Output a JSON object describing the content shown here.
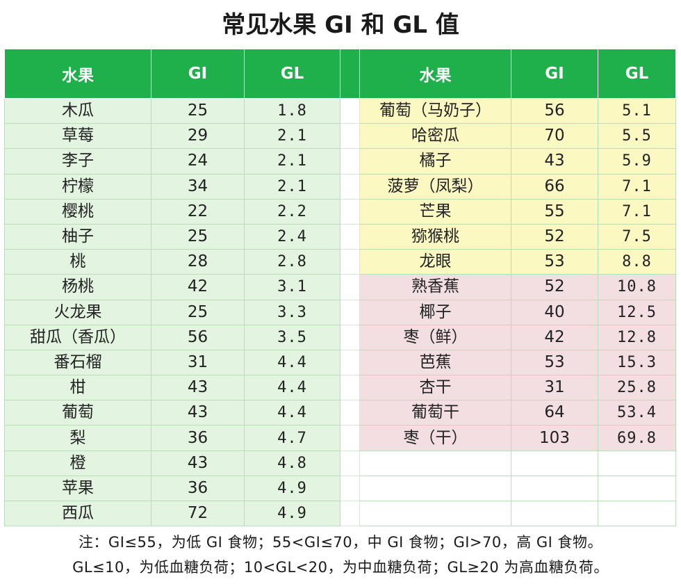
{
  "title": "常见水果 GI 和 GL 值",
  "headers": {
    "left": [
      "水果",
      "GI",
      "GL"
    ],
    "right": [
      "水果",
      "GI",
      "GL"
    ]
  },
  "left_rows": [
    {
      "fruit": "木瓜",
      "gi": "25",
      "gl": "1.8"
    },
    {
      "fruit": "草莓",
      "gi": "29",
      "gl": "2.1"
    },
    {
      "fruit": "李子",
      "gi": "24",
      "gl": "2.1"
    },
    {
      "fruit": "柠檬",
      "gi": "34",
      "gl": "2.1"
    },
    {
      "fruit": "樱桃",
      "gi": "22",
      "gl": "2.2"
    },
    {
      "fruit": "柚子",
      "gi": "25",
      "gl": "2.4"
    },
    {
      "fruit": "桃",
      "gi": "28",
      "gl": "2.8"
    },
    {
      "fruit": "杨桃",
      "gi": "42",
      "gl": "3.1"
    },
    {
      "fruit": "火龙果",
      "gi": "25",
      "gl": "3.3"
    },
    {
      "fruit": "甜瓜（香瓜）",
      "gi": "56",
      "gl": "3.5"
    },
    {
      "fruit": "番石榴",
      "gi": "31",
      "gl": "4.4"
    },
    {
      "fruit": "柑",
      "gi": "43",
      "gl": "4.4"
    },
    {
      "fruit": "葡萄",
      "gi": "43",
      "gl": "4.4"
    },
    {
      "fruit": "梨",
      "gi": "36",
      "gl": "4.7"
    },
    {
      "fruit": "橙",
      "gi": "43",
      "gl": "4.8"
    },
    {
      "fruit": "苹果",
      "gi": "36",
      "gl": "4.9"
    },
    {
      "fruit": "西瓜",
      "gi": "72",
      "gl": "4.9"
    }
  ],
  "right_rows": [
    {
      "fruit": "葡萄（马奶子）",
      "gi": "56",
      "gl": "5.1",
      "band": "y"
    },
    {
      "fruit": "哈密瓜",
      "gi": "70",
      "gl": "5.5",
      "band": "y"
    },
    {
      "fruit": "橘子",
      "gi": "43",
      "gl": "5.9",
      "band": "y"
    },
    {
      "fruit": "菠萝（凤梨）",
      "gi": "66",
      "gl": "7.1",
      "band": "y"
    },
    {
      "fruit": "芒果",
      "gi": "55",
      "gl": "7.1",
      "band": "y"
    },
    {
      "fruit": "猕猴桃",
      "gi": "52",
      "gl": "7.5",
      "band": "y"
    },
    {
      "fruit": "龙眼",
      "gi": "53",
      "gl": "8.8",
      "band": "y"
    },
    {
      "fruit": "熟香蕉",
      "gi": "52",
      "gl": "10.8",
      "band": "p"
    },
    {
      "fruit": "椰子",
      "gi": "40",
      "gl": "12.5",
      "band": "p"
    },
    {
      "fruit": "枣（鲜）",
      "gi": "42",
      "gl": "12.8",
      "band": "p"
    },
    {
      "fruit": "芭蕉",
      "gi": "53",
      "gl": "15.3",
      "band": "p"
    },
    {
      "fruit": "杏干",
      "gi": "31",
      "gl": "25.8",
      "band": "p"
    },
    {
      "fruit": "葡萄干",
      "gi": "64",
      "gl": "53.4",
      "band": "p"
    },
    {
      "fruit": "枣（干）",
      "gi": "103",
      "gl": "69.8",
      "band": "p"
    },
    {
      "fruit": "",
      "gi": "",
      "gl": "",
      "band": "e"
    },
    {
      "fruit": "",
      "gi": "",
      "gl": "",
      "band": "e"
    },
    {
      "fruit": "",
      "gi": "",
      "gl": "",
      "band": "e"
    }
  ],
  "notes": [
    "注：GI≤55，为低 GI 食物；55<GI≤70，中 GI 食物；GI>70，高 GI 食物。",
    "GL≤10，为低血糖负荷；10<GL<20，为中血糖负荷；GL≥20 为高血糖负荷。"
  ],
  "colors": {
    "header_green": "#1fb04b",
    "low_green": "#e3f5e1",
    "mid_yellow": "#fbf8c2",
    "high_pink": "#f3dfe2"
  }
}
